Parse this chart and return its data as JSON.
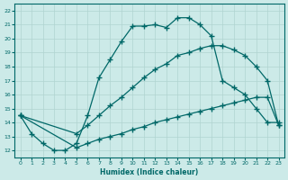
{
  "xlabel": "Humidex (Indice chaleur)",
  "bg_color": "#cceae8",
  "grid_color": "#b0d4d0",
  "line_color": "#006868",
  "xlim": [
    -0.5,
    23.5
  ],
  "ylim": [
    11.5,
    22.5
  ],
  "yticks": [
    12,
    13,
    14,
    15,
    16,
    17,
    18,
    19,
    20,
    21,
    22
  ],
  "xticks": [
    0,
    1,
    2,
    3,
    4,
    5,
    6,
    7,
    8,
    9,
    10,
    11,
    12,
    13,
    14,
    15,
    16,
    17,
    18,
    19,
    20,
    21,
    22,
    23
  ],
  "line1_x": [
    0,
    1,
    2,
    3,
    4,
    5,
    6,
    7,
    8,
    9,
    10,
    11,
    12,
    13,
    14,
    15,
    16,
    17,
    18,
    19,
    20,
    21,
    22,
    23
  ],
  "line1_y": [
    14.5,
    13.2,
    12.5,
    12.0,
    12.0,
    12.5,
    14.5,
    17.2,
    18.5,
    19.8,
    20.9,
    20.9,
    21.0,
    20.8,
    21.5,
    21.5,
    21.0,
    20.2,
    17.0,
    16.5,
    16.0,
    15.0,
    14.0,
    14.0
  ],
  "line2_x": [
    0,
    5,
    6,
    7,
    8,
    9,
    10,
    11,
    12,
    13,
    14,
    15,
    16,
    17,
    18,
    19,
    20,
    21,
    22,
    23
  ],
  "line2_y": [
    14.5,
    13.2,
    13.8,
    14.5,
    15.2,
    15.8,
    16.5,
    17.2,
    17.8,
    18.2,
    18.8,
    19.0,
    19.3,
    19.5,
    19.5,
    19.2,
    18.8,
    18.0,
    17.0,
    13.8
  ],
  "line3_x": [
    0,
    5,
    6,
    7,
    8,
    9,
    10,
    11,
    12,
    13,
    14,
    15,
    16,
    17,
    18,
    19,
    20,
    21,
    22,
    23
  ],
  "line3_y": [
    14.5,
    12.2,
    12.5,
    12.8,
    13.0,
    13.2,
    13.5,
    13.7,
    14.0,
    14.2,
    14.4,
    14.6,
    14.8,
    15.0,
    15.2,
    15.4,
    15.6,
    15.8,
    15.8,
    13.8
  ]
}
